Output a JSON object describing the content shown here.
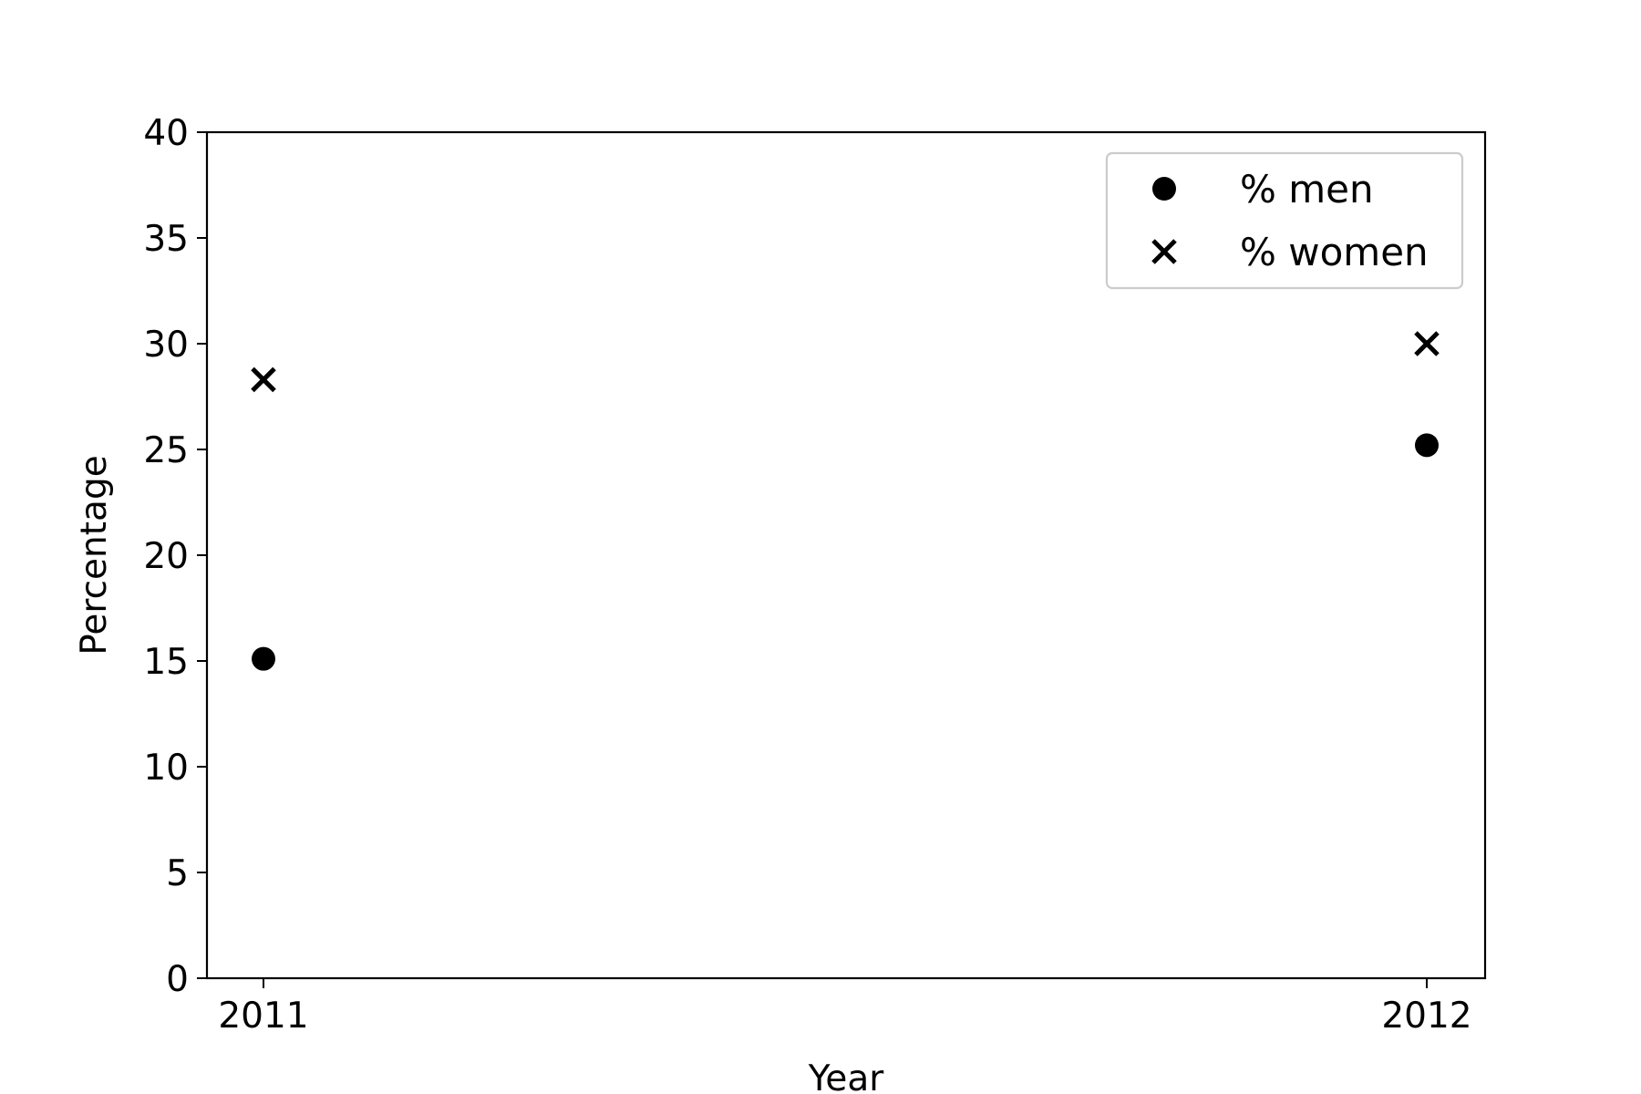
{
  "chart_data": {
    "type": "scatter",
    "title": "",
    "xlabel": "Year",
    "ylabel": "Percentage",
    "x": [
      2011,
      2012
    ],
    "xticks": [
      "2011",
      "2012"
    ],
    "ylim": [
      0,
      40
    ],
    "yticks": [
      0,
      5,
      10,
      15,
      20,
      25,
      30,
      35,
      40
    ],
    "grid": false,
    "legend_position": "top-right",
    "series": [
      {
        "name": "% men",
        "marker": "circle",
        "color": "#000000",
        "values": [
          15.1,
          25.2
        ]
      },
      {
        "name": "% women",
        "marker": "x",
        "color": "#000000",
        "values": [
          28.3,
          30.0
        ]
      }
    ]
  }
}
